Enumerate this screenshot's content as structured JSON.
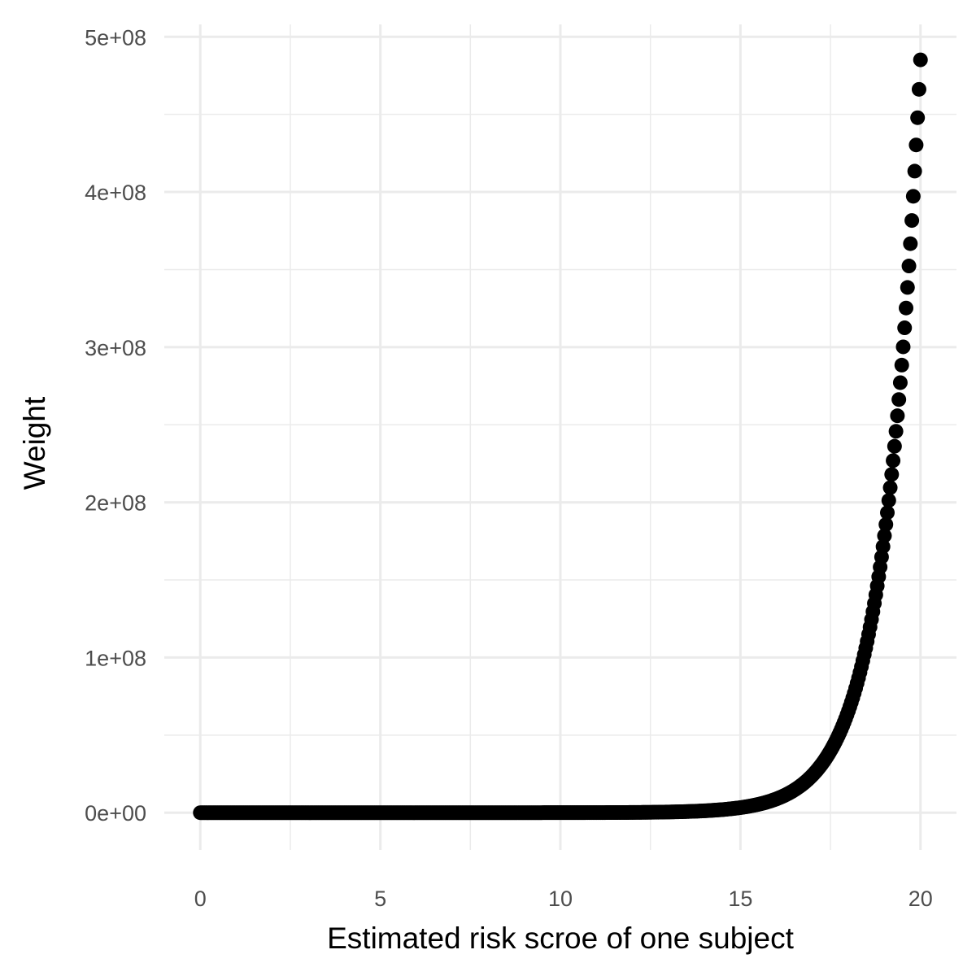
{
  "chart_data": {
    "type": "scatter",
    "title": "",
    "xlabel": "Estimated risk scroe of one subject",
    "ylabel": "Weight",
    "xlim": [
      -1,
      21
    ],
    "ylim": [
      -24000000,
      508000000
    ],
    "x_ticks": [
      0,
      5,
      10,
      15,
      20
    ],
    "x_tick_labels": [
      "0",
      "5",
      "10",
      "15",
      "20"
    ],
    "y_ticks": [
      0,
      100000000,
      200000000,
      300000000,
      400000000,
      500000000
    ],
    "y_tick_labels": [
      "0e+00",
      "1e+08",
      "2e+08",
      "3e+08",
      "4e+08",
      "5e+08"
    ],
    "x_minor_ticks": [
      2.5,
      7.5,
      12.5,
      17.5
    ],
    "y_minor_ticks": [
      50000000,
      150000000,
      250000000,
      350000000,
      450000000
    ],
    "grid": true,
    "legend": "none",
    "point_color": "#000000",
    "grid_color": "#ebebeb",
    "series": [
      {
        "function": "exp(x)",
        "x": {
          "from": 0,
          "to": 20,
          "step": 0.04
        }
      }
    ]
  }
}
